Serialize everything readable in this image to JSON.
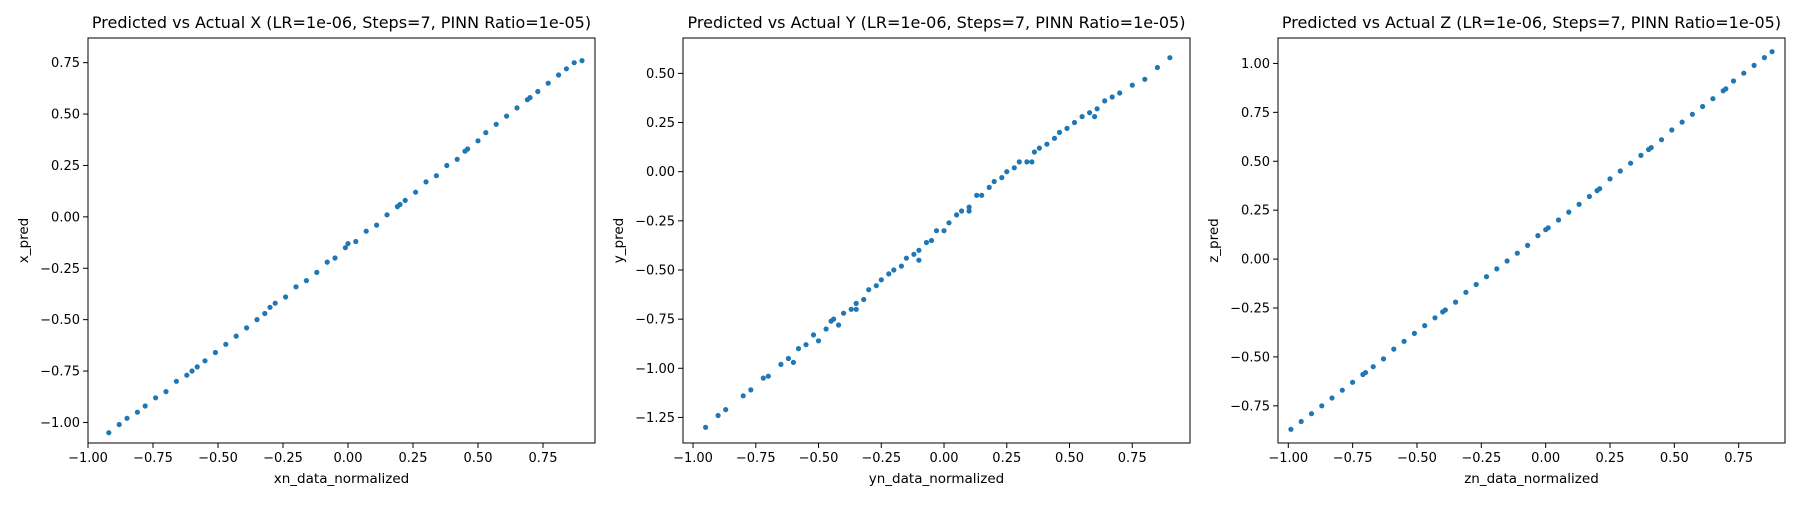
{
  "figure": {
    "background": "#ffffff",
    "point_color": "#1f77b4"
  },
  "chart_data": [
    {
      "type": "scatter",
      "title": "Predicted vs Actual X (LR=1e-06, Steps=7, PINN Ratio=1e-05)",
      "xlabel": "xn_data_normalized",
      "ylabel": "x_pred",
      "xlim": [
        -1.0,
        0.95
      ],
      "ylim": [
        -1.1,
        0.87
      ],
      "xticks": [
        -1.0,
        -0.75,
        -0.5,
        -0.25,
        0.0,
        0.25,
        0.5,
        0.75
      ],
      "xtick_labels": [
        "−1.00",
        "−0.75",
        "−0.50",
        "−0.25",
        "0.00",
        "0.25",
        "0.50",
        "0.75"
      ],
      "yticks": [
        -1.0,
        -0.75,
        -0.5,
        -0.25,
        0.0,
        0.25,
        0.5,
        0.75
      ],
      "ytick_labels": [
        "−1.00",
        "−0.75",
        "−0.50",
        "−0.25",
        "0.00",
        "0.25",
        "0.50",
        "0.75"
      ],
      "grid": false,
      "series": [
        {
          "color": "#1f77b4",
          "points": [
            [
              -0.92,
              -1.05
            ],
            [
              -0.88,
              -1.01
            ],
            [
              -0.85,
              -0.98
            ],
            [
              -0.81,
              -0.95
            ],
            [
              -0.78,
              -0.92
            ],
            [
              -0.74,
              -0.88
            ],
            [
              -0.7,
              -0.85
            ],
            [
              -0.66,
              -0.8
            ],
            [
              -0.62,
              -0.77
            ],
            [
              -0.58,
              -0.73
            ],
            [
              -0.55,
              -0.7
            ],
            [
              -0.51,
              -0.66
            ],
            [
              -0.47,
              -0.62
            ],
            [
              -0.43,
              -0.58
            ],
            [
              -0.39,
              -0.54
            ],
            [
              -0.35,
              -0.5
            ],
            [
              -0.32,
              -0.47
            ],
            [
              -0.28,
              -0.42
            ],
            [
              -0.24,
              -0.39
            ],
            [
              -0.2,
              -0.34
            ],
            [
              -0.16,
              -0.31
            ],
            [
              -0.12,
              -0.27
            ],
            [
              -0.08,
              -0.22
            ],
            [
              -0.05,
              -0.2
            ],
            [
              -0.01,
              -0.15
            ],
            [
              0.03,
              -0.12
            ],
            [
              0.07,
              -0.07
            ],
            [
              0.11,
              -0.04
            ],
            [
              0.15,
              0.01
            ],
            [
              0.19,
              0.05
            ],
            [
              0.22,
              0.08
            ],
            [
              0.26,
              0.12
            ],
            [
              0.3,
              0.17
            ],
            [
              0.34,
              0.2
            ],
            [
              0.38,
              0.25
            ],
            [
              0.42,
              0.28
            ],
            [
              0.46,
              0.33
            ],
            [
              0.5,
              0.37
            ],
            [
              0.53,
              0.41
            ],
            [
              0.57,
              0.45
            ],
            [
              0.61,
              0.49
            ],
            [
              0.65,
              0.53
            ],
            [
              0.69,
              0.57
            ],
            [
              0.73,
              0.61
            ],
            [
              0.77,
              0.65
            ],
            [
              0.81,
              0.69
            ],
            [
              0.84,
              0.72
            ],
            [
              0.87,
              0.75
            ],
            [
              0.9,
              0.76
            ],
            [
              -0.6,
              -0.75
            ],
            [
              -0.3,
              -0.44
            ],
            [
              0.0,
              -0.13
            ],
            [
              0.2,
              0.06
            ],
            [
              0.45,
              0.32
            ],
            [
              0.7,
              0.58
            ]
          ]
        }
      ]
    },
    {
      "type": "scatter",
      "title": "Predicted vs Actual Y (LR=1e-06, Steps=7, PINN Ratio=1e-05)",
      "xlabel": "yn_data_normalized",
      "ylabel": "y_pred",
      "xlim": [
        -1.04,
        0.98
      ],
      "ylim": [
        -1.38,
        0.68
      ],
      "xticks": [
        -1.0,
        -0.75,
        -0.5,
        -0.25,
        0.0,
        0.25,
        0.5,
        0.75
      ],
      "xtick_labels": [
        "−1.00",
        "−0.75",
        "−0.50",
        "−0.25",
        "0.00",
        "0.25",
        "0.50",
        "0.75"
      ],
      "yticks": [
        -1.25,
        -1.0,
        -0.75,
        -0.5,
        -0.25,
        0.0,
        0.25,
        0.5
      ],
      "ytick_labels": [
        "−1.25",
        "−1.00",
        "−0.75",
        "−0.50",
        "−0.25",
        "0.00",
        "0.25",
        "0.50"
      ],
      "grid": false,
      "series": [
        {
          "color": "#1f77b4",
          "points": [
            [
              -0.95,
              -1.3
            ],
            [
              -0.9,
              -1.24
            ],
            [
              -0.87,
              -1.21
            ],
            [
              -0.8,
              -1.14
            ],
            [
              -0.77,
              -1.11
            ],
            [
              -0.72,
              -1.05
            ],
            [
              -0.7,
              -1.04
            ],
            [
              -0.65,
              -0.98
            ],
            [
              -0.62,
              -0.95
            ],
            [
              -0.58,
              -0.9
            ],
            [
              -0.55,
              -0.88
            ],
            [
              -0.52,
              -0.83
            ],
            [
              -0.5,
              -0.86
            ],
            [
              -0.47,
              -0.8
            ],
            [
              -0.44,
              -0.75
            ],
            [
              -0.42,
              -0.78
            ],
            [
              -0.4,
              -0.72
            ],
            [
              -0.37,
              -0.7
            ],
            [
              -0.35,
              -0.67
            ],
            [
              -0.32,
              -0.65
            ],
            [
              -0.3,
              -0.6
            ],
            [
              -0.27,
              -0.58
            ],
            [
              -0.25,
              -0.55
            ],
            [
              -0.22,
              -0.52
            ],
            [
              -0.2,
              -0.5
            ],
            [
              -0.17,
              -0.48
            ],
            [
              -0.15,
              -0.44
            ],
            [
              -0.12,
              -0.42
            ],
            [
              -0.1,
              -0.4
            ],
            [
              -0.07,
              -0.36
            ],
            [
              -0.05,
              -0.35
            ],
            [
              -0.03,
              -0.3
            ],
            [
              0.0,
              -0.3
            ],
            [
              0.02,
              -0.26
            ],
            [
              0.05,
              -0.22
            ],
            [
              0.07,
              -0.2
            ],
            [
              0.1,
              -0.18
            ],
            [
              0.13,
              -0.12
            ],
            [
              0.15,
              -0.12
            ],
            [
              0.18,
              -0.08
            ],
            [
              0.2,
              -0.05
            ],
            [
              0.23,
              -0.03
            ],
            [
              0.25,
              0.0
            ],
            [
              0.28,
              0.02
            ],
            [
              0.3,
              0.05
            ],
            [
              0.33,
              0.05
            ],
            [
              0.36,
              0.1
            ],
            [
              0.38,
              0.12
            ],
            [
              0.41,
              0.14
            ],
            [
              0.44,
              0.17
            ],
            [
              0.46,
              0.2
            ],
            [
              0.49,
              0.22
            ],
            [
              0.52,
              0.25
            ],
            [
              0.55,
              0.28
            ],
            [
              0.58,
              0.3
            ],
            [
              0.61,
              0.32
            ],
            [
              0.64,
              0.36
            ],
            [
              0.67,
              0.38
            ],
            [
              0.7,
              0.4
            ],
            [
              0.75,
              0.44
            ],
            [
              0.8,
              0.47
            ],
            [
              0.85,
              0.53
            ],
            [
              0.9,
              0.58
            ],
            [
              -0.6,
              -0.97
            ],
            [
              -0.35,
              -0.7
            ],
            [
              -0.1,
              -0.45
            ],
            [
              0.1,
              -0.2
            ],
            [
              0.35,
              0.05
            ],
            [
              0.6,
              0.28
            ],
            [
              -0.45,
              -0.76
            ]
          ]
        }
      ]
    },
    {
      "type": "scatter",
      "title": "Predicted vs Actual Z (LR=1e-06, Steps=7, PINN Ratio=1e-05)",
      "xlabel": "zn_data_normalized",
      "ylabel": "z_pred",
      "xlim": [
        -1.04,
        0.93
      ],
      "ylim": [
        -0.94,
        1.13
      ],
      "xticks": [
        -1.0,
        -0.75,
        -0.5,
        -0.25,
        0.0,
        0.25,
        0.5,
        0.75
      ],
      "xtick_labels": [
        "−1.00",
        "−0.75",
        "−0.50",
        "−0.25",
        "0.00",
        "0.25",
        "0.50",
        "0.75"
      ],
      "yticks": [
        -0.75,
        -0.5,
        -0.25,
        0.0,
        0.25,
        0.5,
        0.75,
        1.0
      ],
      "ytick_labels": [
        "−0.75",
        "−0.50",
        "−0.25",
        "0.00",
        "0.25",
        "0.50",
        "0.75",
        "1.00"
      ],
      "grid": false,
      "series": [
        {
          "color": "#1f77b4",
          "points": [
            [
              -0.99,
              -0.87
            ],
            [
              -0.95,
              -0.83
            ],
            [
              -0.91,
              -0.79
            ],
            [
              -0.87,
              -0.75
            ],
            [
              -0.83,
              -0.71
            ],
            [
              -0.79,
              -0.67
            ],
            [
              -0.75,
              -0.63
            ],
            [
              -0.71,
              -0.59
            ],
            [
              -0.67,
              -0.55
            ],
            [
              -0.63,
              -0.51
            ],
            [
              -0.59,
              -0.46
            ],
            [
              -0.55,
              -0.42
            ],
            [
              -0.51,
              -0.38
            ],
            [
              -0.47,
              -0.34
            ],
            [
              -0.43,
              -0.3
            ],
            [
              -0.39,
              -0.26
            ],
            [
              -0.35,
              -0.22
            ],
            [
              -0.31,
              -0.17
            ],
            [
              -0.27,
              -0.13
            ],
            [
              -0.23,
              -0.09
            ],
            [
              -0.19,
              -0.05
            ],
            [
              -0.15,
              -0.01
            ],
            [
              -0.11,
              0.03
            ],
            [
              -0.07,
              0.07
            ],
            [
              -0.03,
              0.12
            ],
            [
              0.01,
              0.16
            ],
            [
              0.05,
              0.2
            ],
            [
              0.09,
              0.24
            ],
            [
              0.13,
              0.28
            ],
            [
              0.17,
              0.32
            ],
            [
              0.21,
              0.36
            ],
            [
              0.25,
              0.41
            ],
            [
              0.29,
              0.45
            ],
            [
              0.33,
              0.49
            ],
            [
              0.37,
              0.53
            ],
            [
              0.41,
              0.57
            ],
            [
              0.45,
              0.61
            ],
            [
              0.49,
              0.66
            ],
            [
              0.53,
              0.7
            ],
            [
              0.57,
              0.74
            ],
            [
              0.61,
              0.78
            ],
            [
              0.65,
              0.82
            ],
            [
              0.69,
              0.86
            ],
            [
              0.73,
              0.91
            ],
            [
              0.77,
              0.95
            ],
            [
              0.81,
              0.99
            ],
            [
              0.85,
              1.03
            ],
            [
              0.88,
              1.06
            ],
            [
              -0.4,
              -0.27
            ],
            [
              0.0,
              0.15
            ],
            [
              0.4,
              0.56
            ],
            [
              0.7,
              0.87
            ],
            [
              -0.7,
              -0.58
            ],
            [
              0.2,
              0.35
            ]
          ]
        }
      ]
    }
  ]
}
